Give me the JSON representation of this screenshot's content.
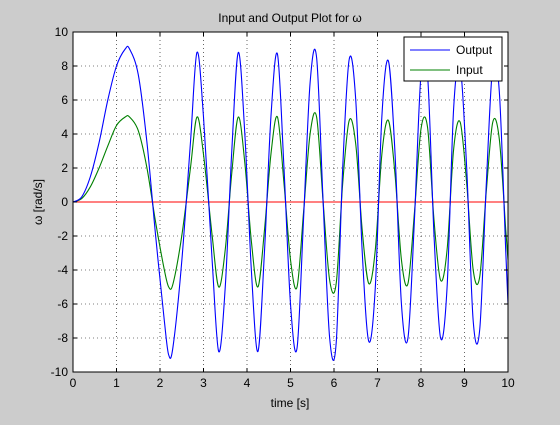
{
  "chart_data": {
    "type": "line",
    "title": "Input and Output Plot for ω",
    "xlabel": "time [s]",
    "ylabel": "ω [rad/s]",
    "xlim": [
      0,
      10
    ],
    "ylim": [
      -10,
      10
    ],
    "xticks": [
      0,
      1,
      2,
      3,
      4,
      5,
      6,
      7,
      8,
      9,
      10
    ],
    "yticks": [
      -10,
      -8,
      -6,
      -4,
      -2,
      0,
      2,
      4,
      6,
      8,
      10
    ],
    "grid": true,
    "legend_position": "top-right",
    "series": [
      {
        "name": "Output",
        "color": "#0000ff",
        "x": [
          0,
          0.2,
          0.4,
          0.6,
          0.8,
          1.0,
          1.2,
          1.3,
          1.5,
          1.7,
          1.9,
          2.1,
          2.2,
          2.3,
          2.5,
          2.7,
          2.85,
          3.0,
          3.2,
          3.35,
          3.5,
          3.65,
          3.8,
          3.95,
          4.1,
          4.25,
          4.4,
          4.55,
          4.7,
          4.85,
          5.0,
          5.15,
          5.3,
          5.45,
          5.6,
          5.75,
          5.9,
          6.05,
          6.2,
          6.35,
          6.5,
          6.65,
          6.8,
          6.95,
          7.1,
          7.25,
          7.4,
          7.55,
          7.7,
          7.85,
          8.0,
          8.15,
          8.3,
          8.45,
          8.6,
          8.75,
          8.9,
          9.05,
          9.2,
          9.35,
          9.5,
          9.65,
          9.8,
          9.95,
          10.0
        ],
        "y": [
          0,
          0.3,
          1.5,
          3.5,
          6.0,
          8.0,
          9.0,
          9.0,
          7.5,
          3.5,
          -2.0,
          -7.0,
          -9.0,
          -8.5,
          -3.5,
          3.5,
          8.8,
          5.0,
          -3.5,
          -8.8,
          -5.0,
          3.0,
          8.8,
          4.0,
          -4.0,
          -8.8,
          -3.0,
          5.0,
          8.7,
          2.0,
          -6.0,
          -8.6,
          -1.0,
          7.0,
          8.5,
          0,
          -8.0,
          -8.3,
          2.0,
          8.4,
          6.0,
          -3.0,
          -8.2,
          -5.0,
          5.0,
          8.3,
          3.0,
          -6.0,
          -8.0,
          -1.0,
          7.5,
          7.5,
          -2.0,
          -8.0,
          -5.0,
          5.5,
          8.0,
          2.0,
          -7.0,
          -7.5,
          1.0,
          8.0,
          6.5,
          -3.0,
          -6.0
        ]
      },
      {
        "name": "Input",
        "color": "#008000",
        "x": [
          0,
          0.2,
          0.4,
          0.6,
          0.8,
          1.0,
          1.2,
          1.3,
          1.5,
          1.7,
          1.9,
          2.1,
          2.2,
          2.3,
          2.5,
          2.7,
          2.85,
          3.0,
          3.2,
          3.35,
          3.5,
          3.65,
          3.8,
          3.95,
          4.1,
          4.25,
          4.4,
          4.55,
          4.7,
          4.85,
          5.0,
          5.15,
          5.3,
          5.45,
          5.6,
          5.75,
          5.9,
          6.05,
          6.2,
          6.35,
          6.5,
          6.65,
          6.8,
          6.95,
          7.1,
          7.25,
          7.4,
          7.55,
          7.7,
          7.85,
          8.0,
          8.15,
          8.3,
          8.45,
          8.6,
          8.75,
          8.9,
          9.05,
          9.2,
          9.35,
          9.5,
          9.65,
          9.8,
          9.95,
          10.0
        ],
        "y": [
          0,
          0.2,
          0.9,
          2.0,
          3.3,
          4.5,
          5.0,
          5.0,
          4.2,
          2.0,
          -1.2,
          -4.0,
          -5.0,
          -4.8,
          -2.0,
          2.0,
          5.0,
          2.8,
          -2.0,
          -5.0,
          -2.8,
          1.7,
          5.0,
          2.3,
          -2.3,
          -5.0,
          -1.7,
          2.8,
          5.0,
          1.1,
          -3.4,
          -5.0,
          -0.6,
          4.0,
          5.0,
          0,
          -4.6,
          -4.8,
          1.1,
          4.8,
          3.4,
          -1.7,
          -4.8,
          -2.8,
          2.8,
          4.8,
          1.7,
          -3.4,
          -4.8,
          -0.6,
          4.3,
          4.4,
          -1.1,
          -4.6,
          -2.8,
          3.1,
          4.7,
          1.1,
          -4.0,
          -4.4,
          0.6,
          4.7,
          3.7,
          -1.7,
          -3.4
        ]
      }
    ],
    "reference_line": {
      "y": 0,
      "color": "#ff0000"
    }
  }
}
